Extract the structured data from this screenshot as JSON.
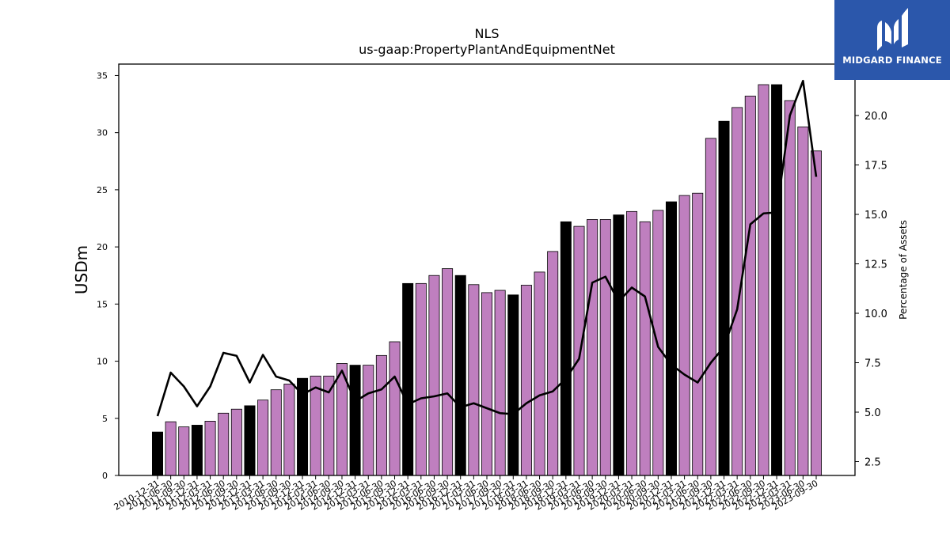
{
  "brand": {
    "name": "MIDGARD FINANCE",
    "logo_icon": "midgard-logo-icon",
    "bg_color": "#2b57ab"
  },
  "chart_data": {
    "type": "bar",
    "title": "NLS",
    "subtitle": "us-gaap:PropertyPlantAndEquipmentNet",
    "ylabel": "USDm",
    "y2label": "Percentage of Assets",
    "ylim": [
      0,
      36
    ],
    "y2lim": [
      1.8,
      22.6
    ],
    "yticks": [
      0,
      5,
      10,
      15,
      20,
      25,
      30,
      35
    ],
    "y2ticks": [
      2.5,
      5.0,
      7.5,
      10.0,
      12.5,
      15.0,
      17.5,
      20.0
    ],
    "grid": false,
    "colors": {
      "quarter_bar": "#bf7fbf",
      "year_end_bar": "#000000",
      "line": "#000000"
    },
    "categories": [
      "2010-12-31",
      "2011-06-30",
      "2011-09-30",
      "2011-12-31",
      "2012-03-31",
      "2012-06-30",
      "2012-09-30",
      "2012-12-31",
      "2013-03-31",
      "2013-06-30",
      "2013-09-30",
      "2013-12-31",
      "2014-03-31",
      "2014-06-30",
      "2014-09-30",
      "2014-12-31",
      "2015-03-31",
      "2015-06-30",
      "2015-09-30",
      "2015-12-31",
      "2016-03-31",
      "2016-06-30",
      "2016-09-30",
      "2016-12-31",
      "2017-03-31",
      "2017-06-30",
      "2017-09-30",
      "2017-12-31",
      "2018-03-31",
      "2018-06-30",
      "2018-09-30",
      "2018-12-31",
      "2019-03-31",
      "2019-06-30",
      "2019-09-30",
      "2019-12-31",
      "2020-03-31",
      "2020-06-30",
      "2020-09-30",
      "2020-12-31",
      "2021-03-31",
      "2021-06-30",
      "2021-09-30",
      "2021-12-31",
      "2022-03-31",
      "2022-06-30",
      "2022-09-30",
      "2022-12-31",
      "2023-03-31",
      "2023-06-30",
      "2023-09-30"
    ],
    "series": [
      {
        "kind": "bar",
        "values": [
          3.8,
          4.7,
          4.25,
          4.4,
          4.75,
          5.45,
          5.8,
          6.1,
          6.6,
          7.5,
          8.0,
          8.5,
          8.7,
          8.7,
          9.8,
          9.65,
          9.65,
          10.5,
          11.7,
          16.8,
          16.8,
          17.5,
          18.1,
          17.5,
          16.7,
          16.0,
          16.2,
          15.8,
          16.65,
          17.8,
          19.6,
          22.2,
          21.8,
          22.4,
          22.4,
          22.8,
          23.1,
          22.2,
          23.2,
          23.95,
          24.5,
          24.7,
          29.5,
          31.0,
          32.2,
          33.2,
          34.2,
          34.2,
          32.8,
          30.5,
          28.4
        ],
        "year_end": [
          true,
          false,
          false,
          true,
          false,
          false,
          false,
          true,
          false,
          false,
          false,
          true,
          false,
          false,
          false,
          true,
          false,
          false,
          false,
          true,
          false,
          false,
          false,
          true,
          false,
          false,
          false,
          true,
          false,
          false,
          false,
          true,
          false,
          false,
          false,
          true,
          false,
          false,
          false,
          true,
          false,
          false,
          false,
          true,
          false,
          false,
          false,
          true,
          false,
          false,
          false
        ]
      },
      {
        "kind": "line",
        "axis": "right",
        "values": [
          4.8,
          7.0,
          6.3,
          5.3,
          6.3,
          8.0,
          7.85,
          6.5,
          7.9,
          6.8,
          6.6,
          5.9,
          6.25,
          6.0,
          7.1,
          5.55,
          5.95,
          6.15,
          6.8,
          5.4,
          5.7,
          5.8,
          5.95,
          5.25,
          5.45,
          5.2,
          4.95,
          4.9,
          5.45,
          5.85,
          6.05,
          6.7,
          7.7,
          11.55,
          11.85,
          10.6,
          11.3,
          10.85,
          8.3,
          7.4,
          6.9,
          6.5,
          7.5,
          8.3,
          10.2,
          14.5,
          15.05,
          15.1,
          20.0,
          21.75,
          16.9
        ]
      }
    ]
  }
}
